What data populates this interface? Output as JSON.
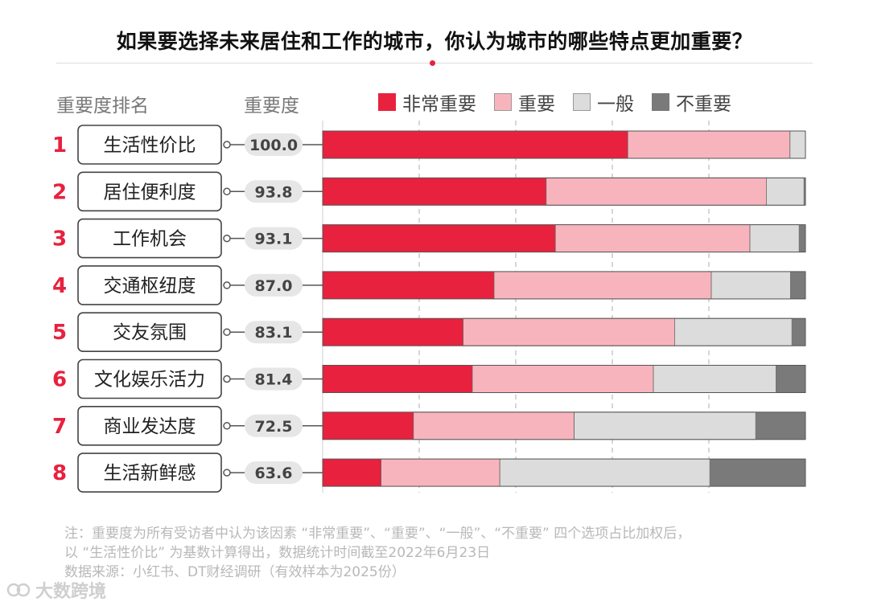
{
  "title": "如果要选择未来居住和工作的城市，你认为城市的哪些特点更加重要？",
  "headers": {
    "rank_label": "重要度排名",
    "score_label": "重要度"
  },
  "colors": {
    "very_important": "#e8213e",
    "important": "#f8b4bd",
    "average": "#dcdcdc",
    "not_important": "#7a7a7a",
    "rank_number": "#e8213e"
  },
  "chart_data": {
    "type": "bar",
    "orientation": "horizontal-stacked-100",
    "categories": [
      "生活性价比",
      "居住便利度",
      "工作机会",
      "交通枢纽度",
      "交友氛围",
      "文化娱乐活力",
      "商业发达度",
      "生活新鲜感"
    ],
    "ranks": [
      "1",
      "2",
      "3",
      "4",
      "5",
      "6",
      "7",
      "8"
    ],
    "scores": [
      "100.0",
      "93.8",
      "93.1",
      "87.0",
      "83.1",
      "81.4",
      "72.5",
      "63.6"
    ],
    "series": [
      {
        "name": "非常重要",
        "values": [
          63.2,
          46.3,
          48.2,
          35.5,
          29.1,
          31.0,
          18.8,
          12.1
        ]
      },
      {
        "name": "重要",
        "values": [
          33.6,
          45.6,
          40.3,
          45.0,
          43.8,
          37.5,
          33.3,
          24.6
        ]
      },
      {
        "name": "一般",
        "values": [
          3.2,
          7.8,
          10.2,
          16.4,
          24.3,
          25.4,
          37.6,
          43.5
        ]
      },
      {
        "name": "不重要",
        "values": [
          0,
          0.3,
          1.3,
          3.1,
          2.8,
          6.1,
          10.3,
          19.8
        ]
      }
    ],
    "xlim": [
      0,
      100
    ],
    "grid": true,
    "legend": "top"
  },
  "note": {
    "line1": "注：重要度为所有受访者中认为该因素 “非常重要”、“重要”、“一般”、“不重要” 四个选项占比加权后，",
    "line2": "以 “生活性价比” 为基数计算得出，数据统计时间截至2022年6月23日",
    "line3": "数据来源：小红书、DT财经调研（有效样本为2025份）"
  },
  "watermark": {
    "text": "大数跨境",
    "icon": "brand-logo-icon"
  }
}
